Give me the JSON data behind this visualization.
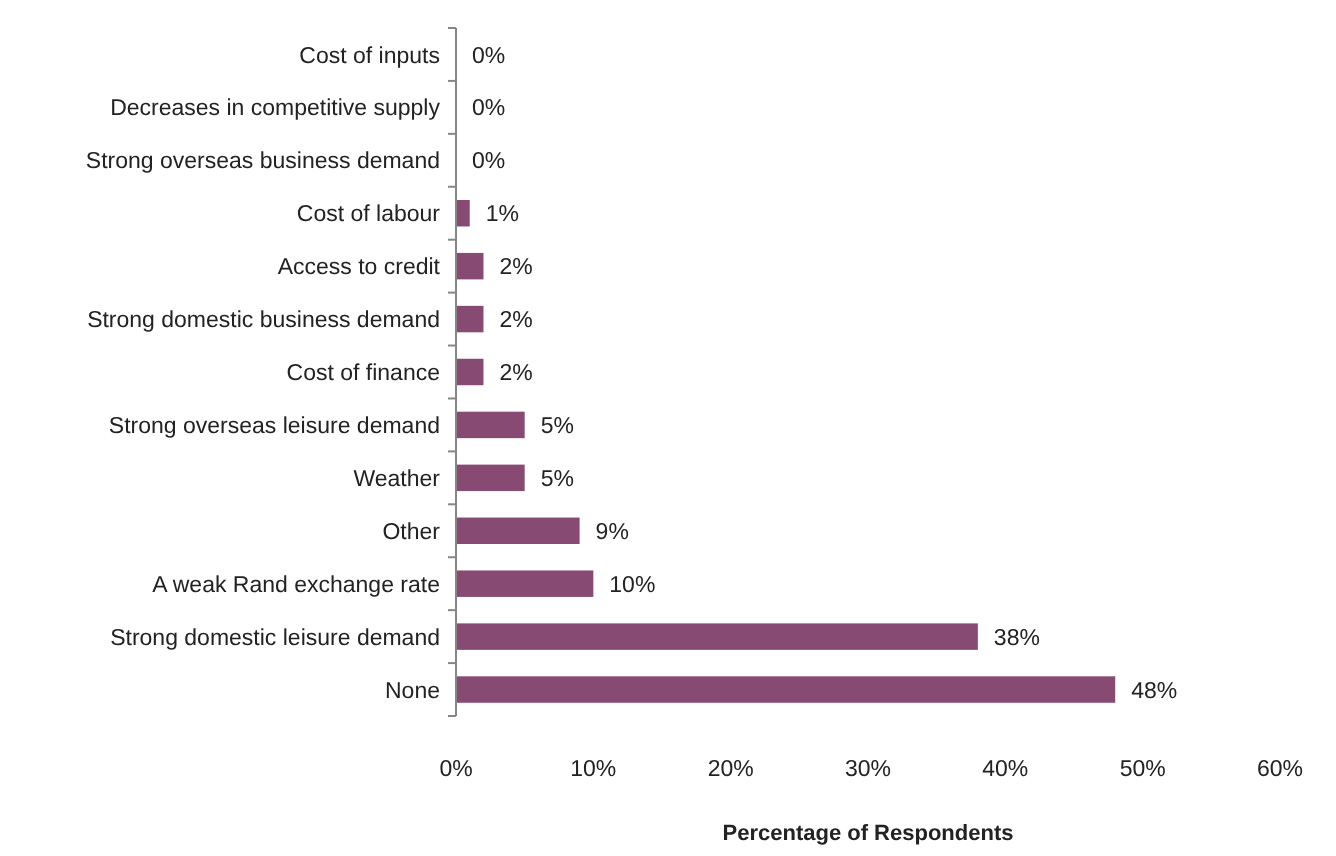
{
  "chart_data": {
    "type": "bar",
    "orientation": "horizontal",
    "xlabel": "Percentage of Respondents",
    "categories": [
      "Cost of inputs",
      "Decreases in competitive supply",
      "Strong overseas business demand",
      "Cost of labour",
      "Access to credit",
      "Strong domestic business demand",
      "Cost of finance",
      "Strong overseas leisure demand",
      "Weather",
      "Other",
      "A weak Rand exchange rate",
      "Strong domestic leisure demand",
      "None"
    ],
    "values": [
      0,
      0,
      0,
      1,
      2,
      2,
      2,
      5,
      5,
      9,
      10,
      38,
      48
    ],
    "value_labels": [
      "0%",
      "0%",
      "0%",
      "1%",
      "2%",
      "2%",
      "2%",
      "5%",
      "5%",
      "9%",
      "10%",
      "38%",
      "48%"
    ],
    "color": "#874a73",
    "xlim": [
      0,
      60
    ],
    "xticks": [
      {
        "value": 0,
        "label": "0%"
      },
      {
        "value": 10,
        "label": "10%"
      },
      {
        "value": 20,
        "label": "20%"
      },
      {
        "value": 30,
        "label": "30%"
      },
      {
        "value": 40,
        "label": "40%"
      },
      {
        "value": 50,
        "label": "50%"
      },
      {
        "value": 60,
        "label": "60%"
      }
    ],
    "grid": false
  }
}
